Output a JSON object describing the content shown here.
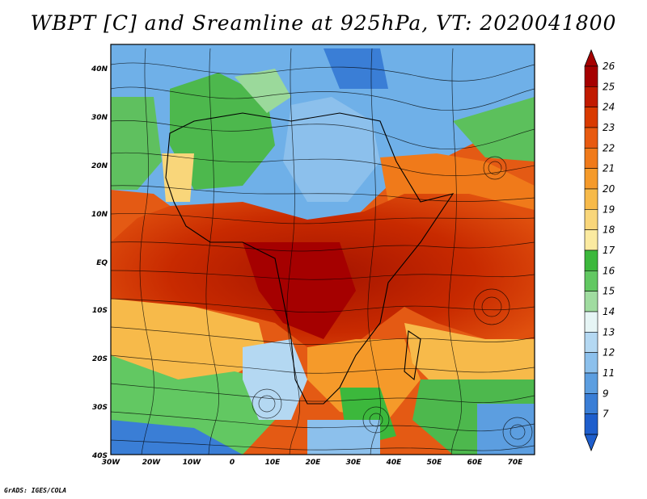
{
  "title": "WBPT [C] and Sreamline at 925hPa, VT: 2020041800",
  "credit": "GrADS: IGES/COLA",
  "map": {
    "lat_labels": [
      "40N",
      "30N",
      "20N",
      "10N",
      "EQ",
      "10S",
      "20S",
      "30S",
      "40S"
    ],
    "lon_labels": [
      "30W",
      "20W",
      "10W",
      "0",
      "10E",
      "20E",
      "30E",
      "40E",
      "50E",
      "60E",
      "70E"
    ],
    "lon_range": [
      -30,
      75
    ],
    "lat_range": [
      -40,
      45
    ]
  },
  "colorbar": {
    "labels": [
      "26",
      "25",
      "24",
      "23",
      "22",
      "21",
      "20",
      "19",
      "18",
      "17",
      "16",
      "15",
      "14",
      "13",
      "12",
      "11",
      "9",
      "7"
    ],
    "colors": [
      "#a50000",
      "#c11a00",
      "#d93a00",
      "#e85a10",
      "#f07a1a",
      "#f59a2a",
      "#f7ba4a",
      "#f9d67a",
      "#fbeaa0",
      "#3cb83c",
      "#62c862",
      "#a0dca0",
      "#e6f5f5",
      "#b4d8f2",
      "#8cc0ec",
      "#5c9ee0",
      "#3a7ed6",
      "#1e5ecc"
    ]
  }
}
